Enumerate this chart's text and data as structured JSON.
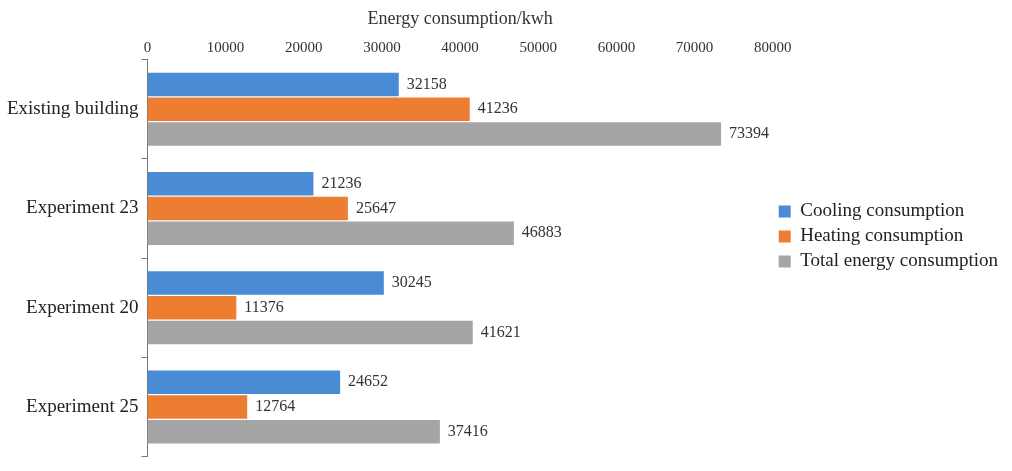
{
  "chart_data": {
    "type": "bar",
    "orientation": "horizontal",
    "xlabel": "Energy consumption/kwh",
    "categories": [
      "Existing building",
      "Experiment 23",
      "Experiment 20",
      "Experiment 25"
    ],
    "series": [
      {
        "name": "Cooling consumption",
        "color": "#4a8bd6",
        "values": [
          32158,
          21236,
          30245,
          24652
        ]
      },
      {
        "name": "Heating consumption",
        "color": "#ed7d31",
        "values": [
          41236,
          25647,
          11376,
          12764
        ]
      },
      {
        "name": "Total energy consumption",
        "color": "#a5a5a5",
        "values": [
          73394,
          46883,
          41621,
          37416
        ]
      }
    ],
    "xlim": [
      0,
      80000
    ],
    "xticks": [
      0,
      10000,
      20000,
      30000,
      40000,
      50000,
      60000,
      70000,
      80000
    ],
    "data_labels": true,
    "legend": "right"
  }
}
